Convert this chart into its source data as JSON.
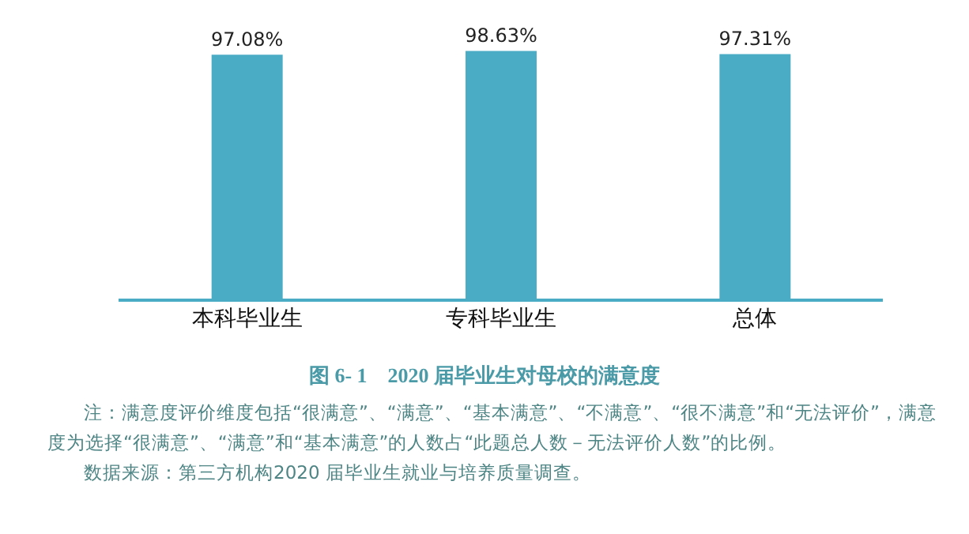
{
  "chart_data": {
    "type": "bar",
    "title": "图 6- 1　2020 届毕业生对母校的满意度",
    "categories": [
      "本科毕业生",
      "专科毕业生",
      "总体"
    ],
    "values": [
      97.08,
      98.63,
      97.31
    ],
    "value_labels": [
      "97.08%",
      "98.63%",
      "97.31%"
    ],
    "color": "#4bacc6",
    "relative": false,
    "grid": false,
    "legend": false,
    "annotations": [
      "注：满意度评价维度包括“很满意”、“满意”、“基本满意”、“不满意”、“很不满意”和“无法评价”，满意度为选择“很满意”、“满意”和“基本满意”的人数占“此题总人数－无法评价人数”的比例。",
      "数据来源：第三方机构2020 届毕业生就业与培养质量调查。"
    ]
  }
}
